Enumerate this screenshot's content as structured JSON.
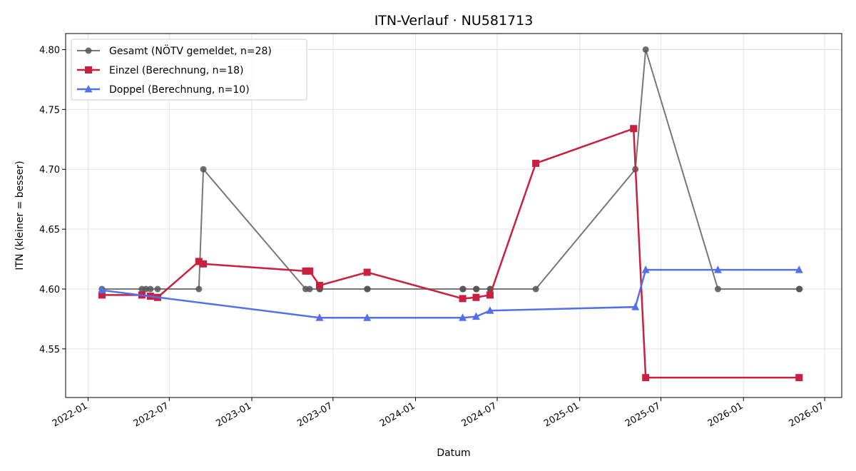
{
  "chart_data": {
    "type": "line",
    "title": "ITN-Verlauf · NU581713",
    "xlabel": "Datum",
    "ylabel": "ITN  (kleiner = besser)",
    "x_type": "date",
    "xlim": [
      "2021-11-12",
      "2026-08-08"
    ],
    "ylim": [
      4.5094,
      4.8134
    ],
    "x_ticks": [
      "2022-01-01",
      "2022-07-01",
      "2023-01-01",
      "2023-07-01",
      "2024-01-01",
      "2024-07-01",
      "2025-01-01",
      "2025-07-01",
      "2026-01-01",
      "2026-07-01"
    ],
    "x_tick_labels": [
      "2022-01",
      "2022-07",
      "2023-01",
      "2023-07",
      "2024-01",
      "2024-07",
      "2025-01",
      "2025-07",
      "2026-01",
      "2026-07"
    ],
    "y_ticks": [
      4.55,
      4.6,
      4.65,
      4.7,
      4.75,
      4.8
    ],
    "y_tick_labels": [
      "4.55",
      "4.60",
      "4.65",
      "4.70",
      "4.75",
      "4.80"
    ],
    "grid": true,
    "legend_position": "top-left",
    "series": [
      {
        "name": "Gesamt (NÖTV gemeldet, n=28)",
        "color": "#555555",
        "marker": "circle",
        "points": [
          [
            "2022-02-01",
            4.6
          ],
          [
            "2022-05-01",
            4.6
          ],
          [
            "2022-05-10",
            4.6
          ],
          [
            "2022-05-20",
            4.6
          ],
          [
            "2022-06-05",
            4.6
          ],
          [
            "2022-09-05",
            4.6
          ],
          [
            "2022-09-15",
            4.7
          ],
          [
            "2023-05-01",
            4.6
          ],
          [
            "2023-05-10",
            4.6
          ],
          [
            "2023-06-01",
            4.6
          ],
          [
            "2023-06-02",
            4.6
          ],
          [
            "2023-09-15",
            4.6
          ],
          [
            "2023-09-16",
            4.6
          ],
          [
            "2024-04-15",
            4.6
          ],
          [
            "2024-04-16",
            4.6
          ],
          [
            "2024-05-15",
            4.6
          ],
          [
            "2024-05-16",
            4.6
          ],
          [
            "2024-06-15",
            4.6
          ],
          [
            "2024-06-16",
            4.6
          ],
          [
            "2024-09-25",
            4.6
          ],
          [
            "2025-05-05",
            4.7
          ],
          [
            "2025-05-28",
            4.8
          ],
          [
            "2025-11-05",
            4.6
          ],
          [
            "2026-05-05",
            4.6
          ],
          [
            "2026-05-06",
            4.6
          ]
        ]
      },
      {
        "name": "Einzel (Berechnung, n=18)",
        "color": "#c8213f",
        "marker": "square",
        "points": [
          [
            "2022-02-01",
            4.595
          ],
          [
            "2022-05-01",
            4.595
          ],
          [
            "2022-05-20",
            4.594
          ],
          [
            "2022-06-05",
            4.593
          ],
          [
            "2022-09-05",
            4.623
          ],
          [
            "2022-09-15",
            4.621
          ],
          [
            "2023-05-01",
            4.615
          ],
          [
            "2023-05-10",
            4.615
          ],
          [
            "2023-06-01",
            4.603
          ],
          [
            "2023-09-15",
            4.614
          ],
          [
            "2024-04-15",
            4.592
          ],
          [
            "2024-05-15",
            4.593
          ],
          [
            "2024-06-15",
            4.595
          ],
          [
            "2024-09-25",
            4.705
          ],
          [
            "2025-05-01",
            4.734
          ],
          [
            "2025-05-28",
            4.526
          ],
          [
            "2026-05-05",
            4.526
          ]
        ]
      },
      {
        "name": "Doppel (Berechnung, n=10)",
        "color": "#5470e8",
        "marker": "triangle",
        "points": [
          [
            "2022-02-01",
            4.599
          ],
          [
            "2023-06-01",
            4.576
          ],
          [
            "2023-09-15",
            4.576
          ],
          [
            "2024-04-15",
            4.576
          ],
          [
            "2024-05-15",
            4.577
          ],
          [
            "2024-06-15",
            4.582
          ],
          [
            "2025-05-05",
            4.585
          ],
          [
            "2025-05-28",
            4.616
          ],
          [
            "2025-11-05",
            4.616
          ],
          [
            "2026-05-05",
            4.616
          ]
        ]
      }
    ]
  }
}
